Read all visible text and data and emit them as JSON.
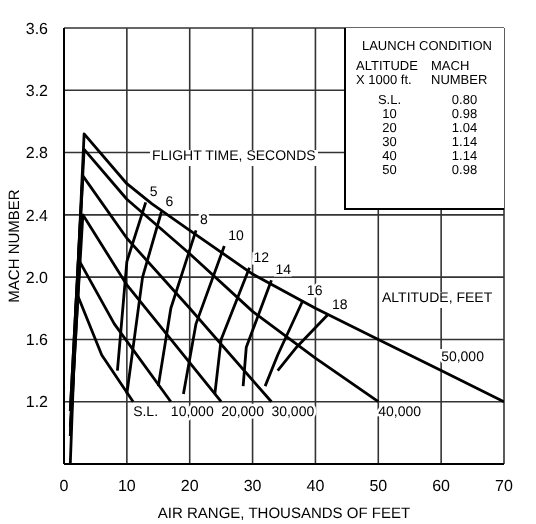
{
  "chart_data": {
    "type": "line",
    "xlabel": "AIR RANGE, THOUSANDS OF FEET",
    "ylabel": "MACH NUMBER",
    "xlim": [
      0,
      70
    ],
    "xticks": [
      0,
      10,
      20,
      30,
      40,
      50,
      60,
      70
    ],
    "ylim": [
      0.8,
      3.6
    ],
    "yticks": [
      1.2,
      1.6,
      {
        "value": 2,
        "label": "2.0"
      },
      2.4,
      2.8,
      3.2,
      3.6
    ],
    "grid": true,
    "legend": false,
    "marker": "none",
    "line_style": "solid",
    "series": [
      {
        "name": "S.L.",
        "color": "#000000",
        "x": [
          1,
          2,
          6,
          11
        ],
        "values": [
          0.8,
          1.9,
          1.5,
          1.2
        ]
      },
      {
        "name": "10,000",
        "color": "#000000",
        "x": [
          1,
          2.5,
          8,
          17
        ],
        "values": [
          0.98,
          2.1,
          1.7,
          1.2
        ]
      },
      {
        "name": "20,000",
        "color": "#000000",
        "x": [
          1,
          3,
          10,
          18,
          25
        ],
        "values": [
          1.04,
          2.4,
          1.95,
          1.55,
          1.2
        ]
      },
      {
        "name": "30,000",
        "color": "#000000",
        "x": [
          1,
          3,
          10,
          20,
          33
        ],
        "values": [
          1.14,
          2.65,
          2.25,
          1.8,
          1.2
        ]
      },
      {
        "name": "40,000",
        "color": "#000000",
        "x": [
          1,
          3.2,
          10,
          20,
          30,
          40,
          50
        ],
        "values": [
          1.14,
          2.82,
          2.5,
          2.15,
          1.78,
          1.48,
          1.2
        ]
      },
      {
        "name": "50,000",
        "color": "#000000",
        "x": [
          1,
          3.2,
          10,
          14,
          20,
          30,
          40,
          50,
          60,
          70
        ],
        "values": [
          0.98,
          2.92,
          2.6,
          2.47,
          2.3,
          2.02,
          1.8,
          1.6,
          1.4,
          1.2
        ]
      },
      {
        "name": "5",
        "color": "#000000",
        "x": [
          13,
          10,
          8.5
        ],
        "values": [
          2.48,
          2.1,
          1.4
        ]
      },
      {
        "name": "6",
        "color": "#000000",
        "x": [
          15.5,
          12.5,
          10
        ],
        "values": [
          2.42,
          2.0,
          1.25
        ]
      },
      {
        "name": "8",
        "color": "#000000",
        "x": [
          21,
          17,
          15
        ],
        "values": [
          2.3,
          1.8,
          1.3
        ]
      },
      {
        "name": "10",
        "color": "#000000",
        "x": [
          25.5,
          21,
          19
        ],
        "values": [
          2.2,
          1.7,
          1.25
        ]
      },
      {
        "name": "12",
        "color": "#000000",
        "x": [
          29.5,
          25,
          24
        ],
        "values": [
          2.06,
          1.6,
          1.25
        ]
      },
      {
        "name": "14",
        "color": "#000000",
        "x": [
          33,
          29,
          28.5
        ],
        "values": [
          1.98,
          1.55,
          1.3
        ]
      },
      {
        "name": "16",
        "color": "#000000",
        "x": [
          38,
          34,
          32
        ],
        "values": [
          1.85,
          1.5,
          1.3
        ]
      },
      {
        "name": "18",
        "color": "#000000",
        "x": [
          42,
          37,
          34
        ],
        "values": [
          1.76,
          1.55,
          1.4
        ]
      }
    ],
    "annotations": [
      "FLIGHT TIME, SECONDS",
      "ALTITUDE, FEET",
      "LAUNCH CONDITION",
      "ALTITUDE X 1000 ft.",
      "MACH NUMBER",
      "S.L.",
      "0.80",
      "10",
      "0.98",
      "20",
      "1.04",
      "30",
      "1.14",
      "40",
      "1.14",
      "50",
      "0.98"
    ]
  }
}
